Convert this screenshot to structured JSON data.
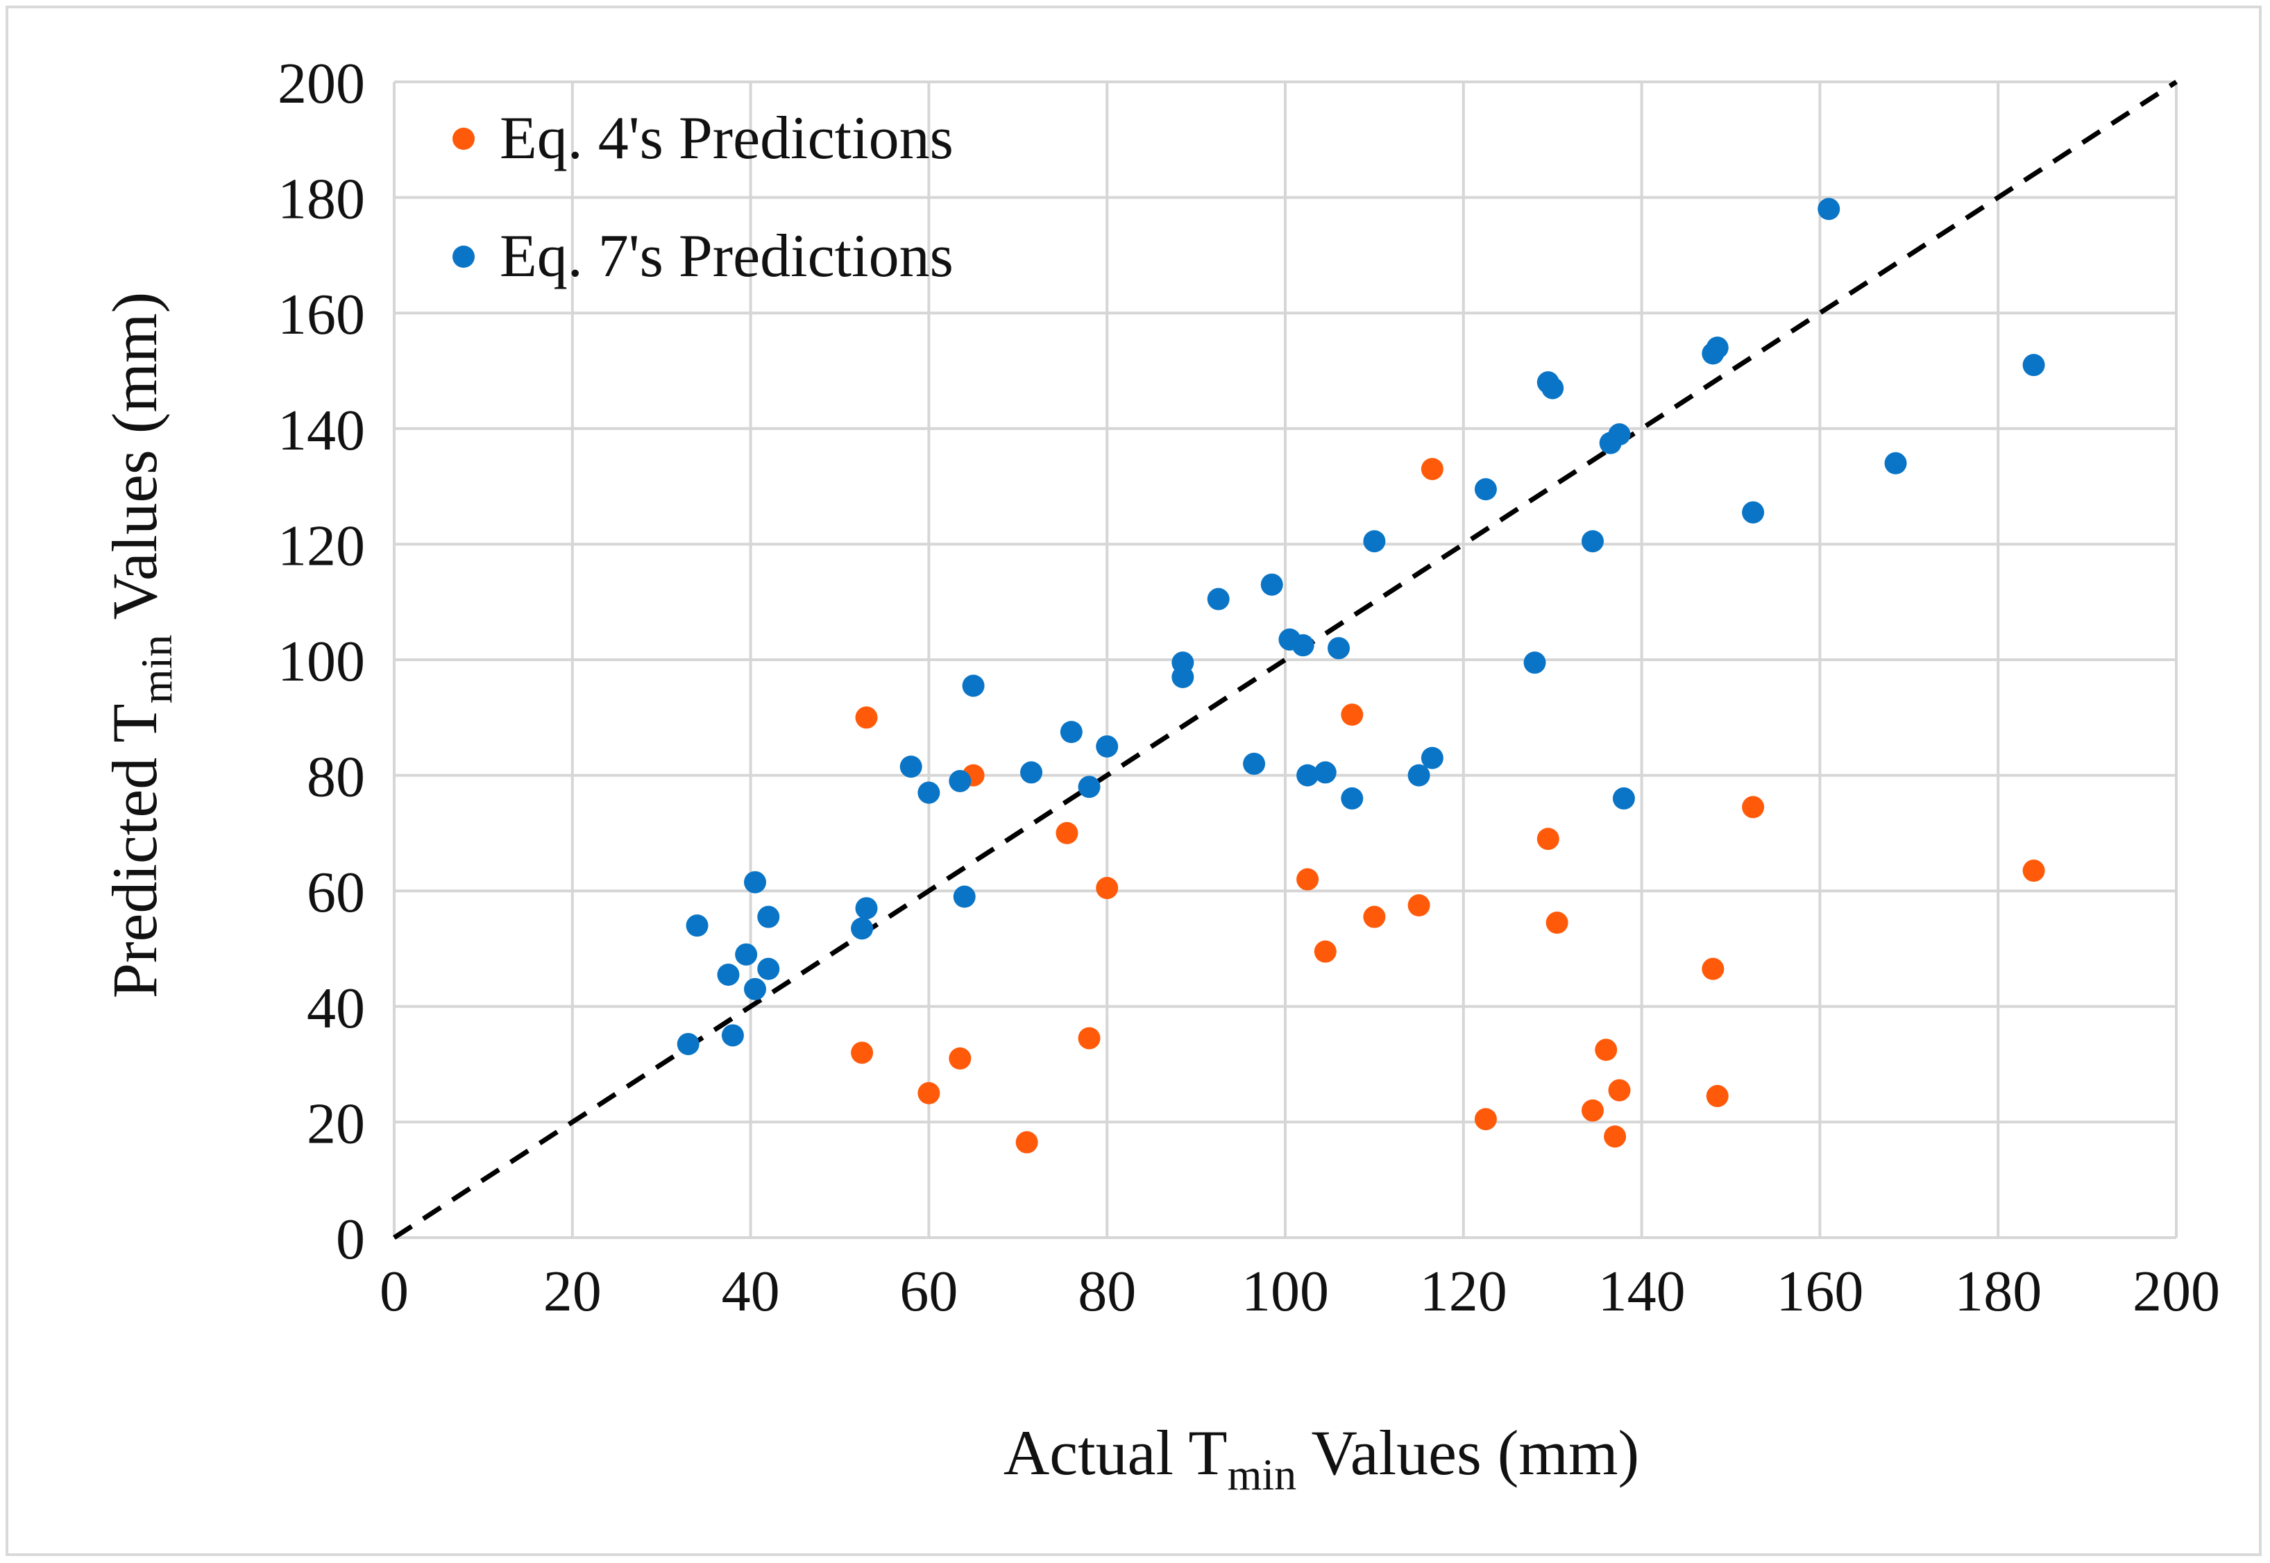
{
  "chart_data": {
    "type": "scatter",
    "title": "",
    "xlabel": {
      "prefix": "Actual T",
      "sub": "min",
      "suffix": " Values (mm)"
    },
    "ylabel": {
      "prefix": "Predicted T",
      "sub": "min",
      "suffix": " Values (mm)"
    },
    "xlim": [
      0,
      200
    ],
    "ylim": [
      0,
      200
    ],
    "xticks": [
      "0",
      "20",
      "40",
      "60",
      "80",
      "100",
      "120",
      "140",
      "160",
      "180",
      "200"
    ],
    "yticks": [
      "0",
      "20",
      "40",
      "60",
      "80",
      "100",
      "120",
      "140",
      "160",
      "180",
      "200"
    ],
    "grid": true,
    "legend_position": "top-left",
    "reference_line": {
      "style": "dashed",
      "from": [
        0,
        0
      ],
      "to": [
        200,
        200
      ],
      "color": "#000000"
    },
    "series": [
      {
        "name": "Eq. 4's Predictions",
        "color": "#ff5a0a",
        "points": [
          [
            53,
            90
          ],
          [
            52.5,
            32
          ],
          [
            60,
            25
          ],
          [
            63.5,
            31
          ],
          [
            65,
            80
          ],
          [
            71,
            16.5
          ],
          [
            75.5,
            70
          ],
          [
            78,
            34.5
          ],
          [
            80,
            60.5
          ],
          [
            102.5,
            62
          ],
          [
            104.5,
            49.5
          ],
          [
            107.5,
            90.5
          ],
          [
            110,
            55.5
          ],
          [
            115,
            57.5
          ],
          [
            116.5,
            133
          ],
          [
            122.5,
            20.5
          ],
          [
            129.5,
            69
          ],
          [
            130.5,
            54.5
          ],
          [
            134.5,
            22
          ],
          [
            136,
            32.5
          ],
          [
            137,
            17.5
          ],
          [
            137.5,
            25.5
          ],
          [
            148,
            46.5
          ],
          [
            148.5,
            24.5
          ],
          [
            152.5,
            74.5
          ],
          [
            184,
            63.5
          ]
        ]
      },
      {
        "name": "Eq. 7's Predictions",
        "color": "#0a75c6",
        "points": [
          [
            33,
            33.5
          ],
          [
            34,
            54
          ],
          [
            37.5,
            45.5
          ],
          [
            38,
            35
          ],
          [
            39.5,
            49
          ],
          [
            40.5,
            43
          ],
          [
            40.5,
            61.5
          ],
          [
            42,
            46.5
          ],
          [
            42,
            55.5
          ],
          [
            52.5,
            53.5
          ],
          [
            53,
            57
          ],
          [
            58,
            81.5
          ],
          [
            60,
            77
          ],
          [
            63.5,
            79
          ],
          [
            64,
            59
          ],
          [
            65,
            95.5
          ],
          [
            71.5,
            80.5
          ],
          [
            76,
            87.5
          ],
          [
            78,
            78
          ],
          [
            80,
            85
          ],
          [
            88.5,
            97
          ],
          [
            88.5,
            99.5
          ],
          [
            92.5,
            110.5
          ],
          [
            96.5,
            82
          ],
          [
            98.5,
            113
          ],
          [
            100.5,
            103.5
          ],
          [
            102,
            102.5
          ],
          [
            102.5,
            80
          ],
          [
            104.5,
            80.5
          ],
          [
            106,
            102
          ],
          [
            107.5,
            76
          ],
          [
            110,
            120.5
          ],
          [
            115,
            80
          ],
          [
            116.5,
            83
          ],
          [
            122.5,
            129.5
          ],
          [
            128,
            99.5
          ],
          [
            129.5,
            148
          ],
          [
            130,
            147
          ],
          [
            134.5,
            120.5
          ],
          [
            136.5,
            137.5
          ],
          [
            137.5,
            139
          ],
          [
            138,
            76
          ],
          [
            148,
            153
          ],
          [
            148.5,
            154
          ],
          [
            152.5,
            125.5
          ],
          [
            161,
            178
          ],
          [
            168.5,
            134
          ],
          [
            184,
            151
          ]
        ]
      }
    ]
  }
}
